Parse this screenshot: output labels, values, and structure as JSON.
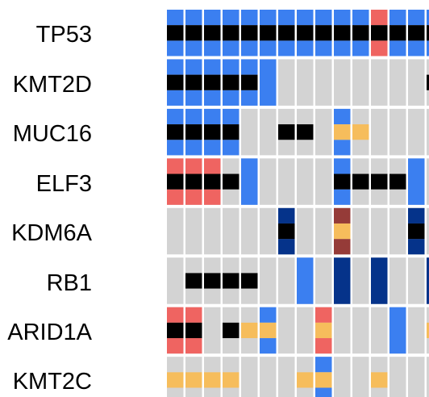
{
  "chart_data": {
    "type": "heatmap",
    "subtype": "oncoprint",
    "title": "",
    "xlabel": "",
    "ylabel": "",
    "legend": "none",
    "colors": {
      "background": "#d3d3d3",
      "missense_blue": "#3b7ff0",
      "truncating_black": "#000000",
      "red": "#ef6461",
      "yellow": "#f6bd5c",
      "dark_blue": "#05338a",
      "brown": "#953b38"
    },
    "cell_encoding": "top/mid/bottom: 0=none, B=blue, R=red, Y=yellow, D=dark blue, N=brown, K=black, F=full-height blue",
    "genes": [
      "TP53",
      "KMT2D",
      "MUC16",
      "ELF3",
      "KDM6A",
      "RB1",
      "ARID1A",
      "KMT2C"
    ],
    "samples": 15,
    "alterations": [
      [
        "BKB",
        "BKB",
        "BKB",
        "BKB",
        "BKB",
        "BKB",
        "BKB",
        "BKB",
        "BKB",
        "BKB",
        "BKB",
        "RKR",
        "BKB",
        "BKB",
        "BKB"
      ],
      [
        "BKB",
        "BKB",
        "BKB",
        "BKB",
        "BKB",
        "F",
        "000",
        "000",
        "000",
        "000",
        "000",
        "000",
        "000",
        "000",
        "0K0"
      ],
      [
        "BKB",
        "BKB",
        "BKB",
        "BKB",
        "000",
        "000",
        "0K0",
        "0K0",
        "000",
        "BYB",
        "0Y0",
        "000",
        "000",
        "000",
        "000"
      ],
      [
        "RKR",
        "RKR",
        "RKR",
        "0K0",
        "F",
        "000",
        "000",
        "000",
        "000",
        "BKB",
        "0K0",
        "0K0",
        "0K0",
        "F",
        "000"
      ],
      [
        "000",
        "000",
        "000",
        "000",
        "000",
        "000",
        "DKD",
        "000",
        "000",
        "NYN",
        "000",
        "000",
        "000",
        "DKD",
        "000"
      ],
      [
        "000",
        "0K0",
        "0K0",
        "0K0",
        "0K0",
        "000",
        "000",
        "F",
        "000",
        "D",
        "000",
        "D",
        "000",
        "000",
        "D"
      ],
      [
        "RKR",
        "RKR",
        "000",
        "0K0",
        "0Y0",
        "BYB",
        "000",
        "000",
        "RYR",
        "000",
        "000",
        "000",
        "F",
        "000",
        "0Y0"
      ],
      [
        "0Y0",
        "0Y0",
        "0Y0",
        "0Y0",
        "000",
        "000",
        "000",
        "0Y0",
        "BYB",
        "000",
        "000",
        "0Y0",
        "000",
        "000",
        "000"
      ]
    ]
  }
}
